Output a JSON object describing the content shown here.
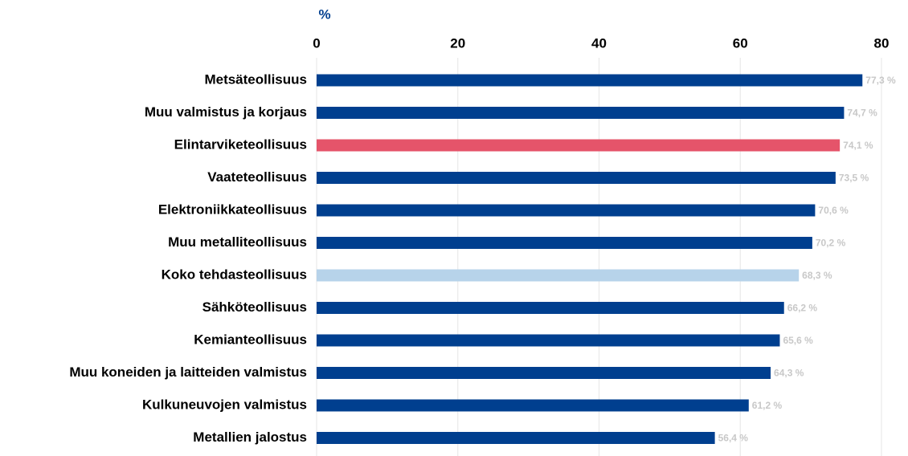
{
  "chart_data": {
    "type": "hbar",
    "axis_label": "%",
    "categories": [
      "Metsäteollisuus",
      "Muu valmistus ja korjaus",
      "Elintarviketeollisuus",
      "Vaateteollisuus",
      "Elektroniikkateollisuus",
      "Muu metalliteollisuus",
      "Koko tehdasteollisuus",
      "Sähköteollisuus",
      "Kemianteollisuus",
      "Muu koneiden ja laitteiden valmistus",
      "Kulkuneuvojen valmistus",
      "Metallien jalostus"
    ],
    "values": [
      77.3,
      74.7,
      74.1,
      73.5,
      70.6,
      70.2,
      68.3,
      66.2,
      65.6,
      64.3,
      61.2,
      56.4
    ],
    "value_labels": [
      "77,3 %",
      "74,7 %",
      "74,1 %",
      "73,5 %",
      "70,6 %",
      "70,2 %",
      "68,3 %",
      "66,2 %",
      "65,6 %",
      "64,3 %",
      "61,2 %",
      "56,4 %"
    ],
    "colors": [
      "#003f8f",
      "#003f8f",
      "#e5546a",
      "#003f8f",
      "#003f8f",
      "#003f8f",
      "#b7d3ea",
      "#003f8f",
      "#003f8f",
      "#003f8f",
      "#003f8f",
      "#003f8f"
    ],
    "xlim": [
      0,
      80
    ],
    "xticks": [
      0,
      20,
      40,
      60,
      80
    ],
    "grid": true
  }
}
